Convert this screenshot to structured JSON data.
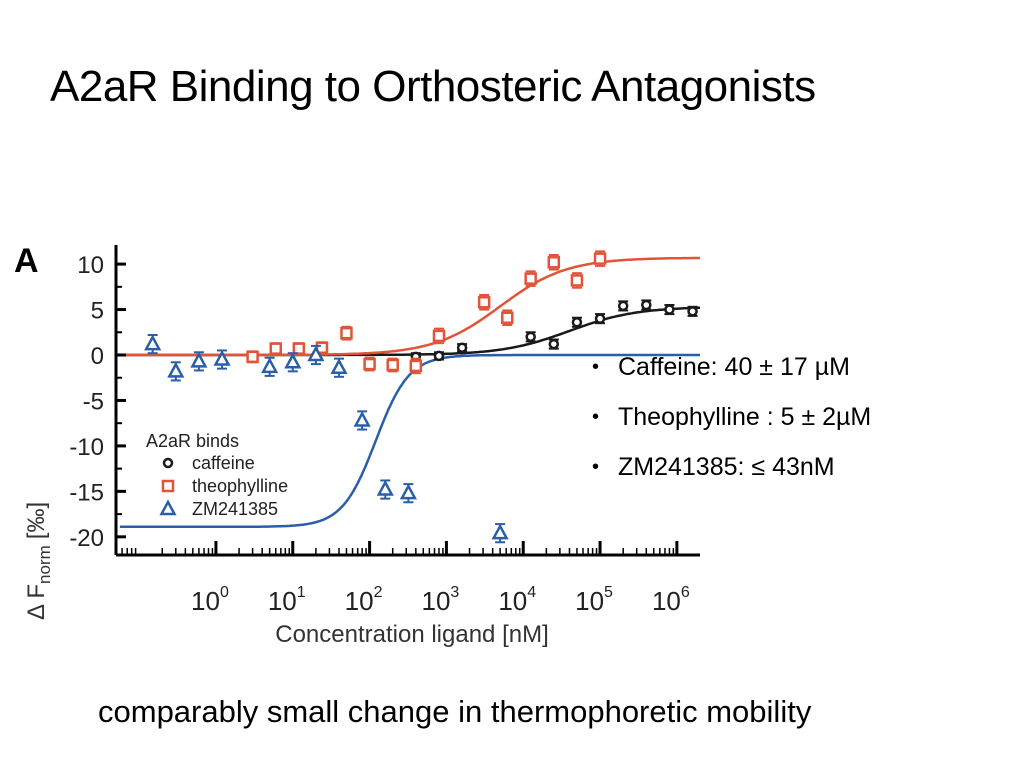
{
  "title": "A2aR Binding to Orthosteric Antagonists",
  "footer": "comparably small change in thermophoretic mobility",
  "bullets": [
    "Caffeine: 40 ± 17 µM",
    "Theophylline : 5 ± 2µM",
    "ZM241385: ≤ 43nM"
  ],
  "colors": {
    "caffeine": "#1a1a1a",
    "theophylline": "#e0553a",
    "zm241385": "#2a5fa8"
  },
  "chart_data": {
    "type": "scatter",
    "panel_label": "A",
    "xlabel": "Concentration ligand [nM]",
    "ylabel_main": "Δ F",
    "ylabel_sub": "norm",
    "ylabel_unit": "[‰]",
    "xscale": "log",
    "xlim": [
      0.05,
      2000000
    ],
    "ylim": [
      -22,
      11
    ],
    "xticks": [
      {
        "value": 1,
        "base": "10",
        "exp": "0"
      },
      {
        "value": 10,
        "base": "10",
        "exp": "1"
      },
      {
        "value": 100,
        "base": "10",
        "exp": "2"
      },
      {
        "value": 1000,
        "base": "10",
        "exp": "3"
      },
      {
        "value": 10000,
        "base": "10",
        "exp": "4"
      },
      {
        "value": 100000,
        "base": "10",
        "exp": "5"
      },
      {
        "value": 1000000,
        "base": "10",
        "exp": "6"
      }
    ],
    "yticks": [
      {
        "value": 10,
        "label": "10"
      },
      {
        "value": 5,
        "label": "5"
      },
      {
        "value": 0,
        "label": "0"
      },
      {
        "value": -5,
        "label": "-5"
      },
      {
        "value": -10,
        "label": "-10"
      },
      {
        "value": -15,
        "label": "-15"
      },
      {
        "value": -20,
        "label": "-20"
      }
    ],
    "legend_title": "A2aR binds",
    "legend_position": "bottom-left",
    "series": [
      {
        "name": "caffeine",
        "marker": "circle",
        "fit": {
          "bottom": 0,
          "top": 5.3,
          "ec50": 40000,
          "hill": 1
        },
        "points": [
          {
            "x": 400,
            "y": -0.2,
            "err": 0.4
          },
          {
            "x": 800,
            "y": -0.1,
            "err": 0.4
          },
          {
            "x": 1600,
            "y": 0.8,
            "err": 0.4
          },
          {
            "x": 12500,
            "y": 2.0,
            "err": 0.5
          },
          {
            "x": 25000,
            "y": 1.2,
            "err": 0.5
          },
          {
            "x": 50000,
            "y": 3.6,
            "err": 0.5
          },
          {
            "x": 100000,
            "y": 4.0,
            "err": 0.5
          },
          {
            "x": 200000,
            "y": 5.4,
            "err": 0.5
          },
          {
            "x": 400000,
            "y": 5.5,
            "err": 0.5
          },
          {
            "x": 800000,
            "y": 5.0,
            "err": 0.5
          },
          {
            "x": 1600000,
            "y": 4.8,
            "err": 0.5
          }
        ]
      },
      {
        "name": "theophylline",
        "marker": "square",
        "fit": {
          "bottom": 0,
          "top": 10.7,
          "ec50": 5000,
          "hill": 1
        },
        "points": [
          {
            "x": 3,
            "y": -0.2,
            "err": 0.6
          },
          {
            "x": 6,
            "y": 0.7,
            "err": 0.6
          },
          {
            "x": 12,
            "y": 0.7,
            "err": 0.6
          },
          {
            "x": 24,
            "y": 0.8,
            "err": 0.6
          },
          {
            "x": 50,
            "y": 2.4,
            "err": 0.7
          },
          {
            "x": 100,
            "y": -1.0,
            "err": 0.7
          },
          {
            "x": 200,
            "y": -1.1,
            "err": 0.7
          },
          {
            "x": 400,
            "y": -1.2,
            "err": 0.8
          },
          {
            "x": 800,
            "y": 2.1,
            "err": 0.8
          },
          {
            "x": 3100,
            "y": 5.8,
            "err": 0.8
          },
          {
            "x": 6200,
            "y": 4.1,
            "err": 0.8
          },
          {
            "x": 12500,
            "y": 8.4,
            "err": 0.8
          },
          {
            "x": 25000,
            "y": 10.2,
            "err": 0.8
          },
          {
            "x": 50000,
            "y": 8.2,
            "err": 0.8
          },
          {
            "x": 100000,
            "y": 10.6,
            "err": 0.8
          }
        ]
      },
      {
        "name": "ZM241385",
        "marker": "triangle",
        "fit": {
          "bottom": -18.9,
          "top": 0,
          "ec50": 120,
          "hill": 2
        },
        "points": [
          {
            "x": 0.15,
            "y": 1.2,
            "err": 1.0
          },
          {
            "x": 0.3,
            "y": -1.8,
            "err": 1.0
          },
          {
            "x": 0.6,
            "y": -0.7,
            "err": 1.0
          },
          {
            "x": 1.2,
            "y": -0.5,
            "err": 1.0
          },
          {
            "x": 5,
            "y": -1.3,
            "err": 1.0
          },
          {
            "x": 10,
            "y": -0.8,
            "err": 1.0
          },
          {
            "x": 20,
            "y": 0.0,
            "err": 1.0
          },
          {
            "x": 40,
            "y": -1.4,
            "err": 1.0
          },
          {
            "x": 80,
            "y": -7.2,
            "err": 1.0
          },
          {
            "x": 160,
            "y": -14.8,
            "err": 1.0
          },
          {
            "x": 320,
            "y": -15.2,
            "err": 1.0
          },
          {
            "x": 5000,
            "y": -19.6,
            "err": 1.0
          }
        ]
      }
    ]
  }
}
